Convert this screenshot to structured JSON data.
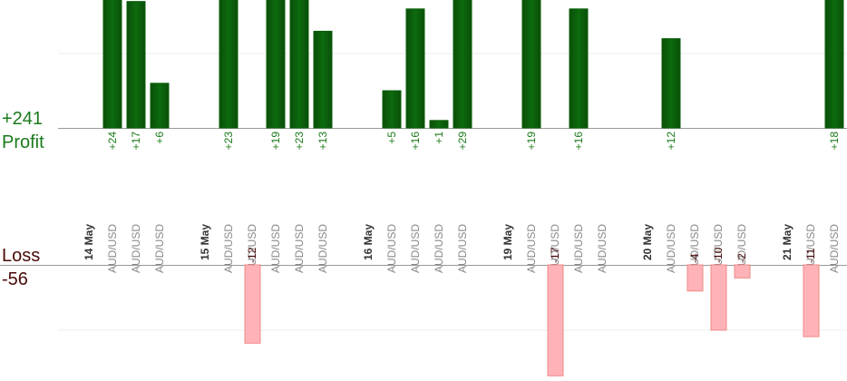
{
  "chart_data": {
    "type": "bar",
    "profit": {
      "title": "Profit",
      "total": {
        "value": 241,
        "label": "+241"
      },
      "color": "#0b5e0b",
      "ylim": [
        0,
        17.2
      ],
      "yticks": [
        10
      ]
    },
    "loss": {
      "title": "Loss",
      "total": {
        "value": -56,
        "label": "-56"
      },
      "color": "#ffb3b8",
      "ylim": [
        -17.8,
        0
      ],
      "yticks": [
        -10
      ]
    },
    "days": [
      {
        "date": "14 May",
        "trades": [
          {
            "symbol": "AUD/USD",
            "value": 24,
            "value_label": "+24"
          },
          {
            "symbol": "AUD/USD",
            "value": 17,
            "value_label": "+17"
          },
          {
            "symbol": "AUD/USD",
            "value": 6,
            "value_label": "+6"
          }
        ]
      },
      {
        "date": "15 May",
        "trades": [
          {
            "symbol": "AUD/USD",
            "value": 23,
            "value_label": "+23"
          },
          {
            "symbol": "AUD/USD",
            "value": -12,
            "value_label": "-12"
          },
          {
            "symbol": "AUD/USD",
            "value": 19,
            "value_label": "+19"
          },
          {
            "symbol": "AUD/USD",
            "value": 23,
            "value_label": "+23"
          },
          {
            "symbol": "AUD/USD",
            "value": 13,
            "value_label": "+13"
          }
        ]
      },
      {
        "date": "16 May",
        "trades": [
          {
            "symbol": "AUD/USD",
            "value": 5,
            "value_label": "+5"
          },
          {
            "symbol": "AUD/USD",
            "value": 16,
            "value_label": "+16"
          },
          {
            "symbol": "AUD/USD",
            "value": 1,
            "value_label": "+1"
          },
          {
            "symbol": "AUD/USD",
            "value": 29,
            "value_label": "+29"
          }
        ]
      },
      {
        "date": "19 May",
        "trades": [
          {
            "symbol": "AUD/USD",
            "value": 19,
            "value_label": "+19"
          },
          {
            "symbol": "AUD/USD",
            "value": -17,
            "value_label": "-17"
          },
          {
            "symbol": "AUD/USD",
            "value": 16,
            "value_label": "+16"
          },
          {
            "symbol": "AUD/USD",
            "value": null
          }
        ]
      },
      {
        "date": "20 May",
        "trades": [
          {
            "symbol": "AUD/USD",
            "value": 12,
            "value_label": "+12"
          },
          {
            "symbol": "AUD/USD",
            "value": -4,
            "value_label": "-4"
          },
          {
            "symbol": "AUD/USD",
            "value": -10,
            "value_label": "-10"
          },
          {
            "symbol": "AUD/USD",
            "value": -2,
            "value_label": "-2"
          }
        ]
      },
      {
        "date": "21 May",
        "trades": [
          {
            "symbol": "AUD/USD",
            "value": -11,
            "value_label": "-11"
          },
          {
            "symbol": "AUD/USD",
            "value": 18,
            "value_label": "+18"
          }
        ]
      }
    ]
  }
}
